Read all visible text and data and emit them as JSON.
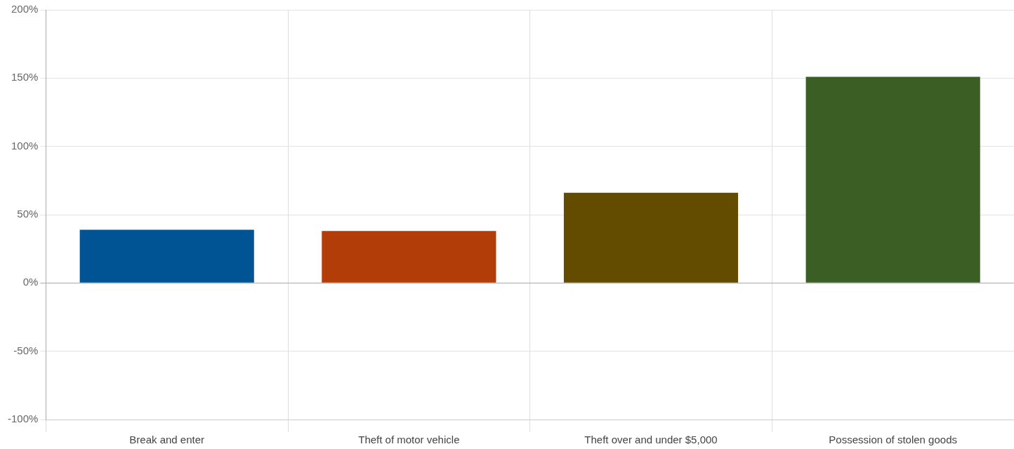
{
  "chart_data": {
    "type": "bar",
    "categories": [
      "Break and enter",
      "Theft of motor vehicle",
      "Theft over and under $5,000",
      "Possession of stolen goods"
    ],
    "values": [
      39,
      38,
      66,
      151
    ],
    "colors": [
      "#005493",
      "#b33d08",
      "#634b00",
      "#3b5e25"
    ],
    "ylim": [
      -100,
      200
    ],
    "yticks": [
      {
        "value": -100,
        "label": "-100%"
      },
      {
        "value": -50,
        "label": "-50%"
      },
      {
        "value": 0,
        "label": "0%"
      },
      {
        "value": 50,
        "label": "50%"
      },
      {
        "value": 100,
        "label": "100%"
      },
      {
        "value": 150,
        "label": "150%"
      },
      {
        "value": 200,
        "label": "200%"
      }
    ],
    "grid": true,
    "legend": false
  }
}
